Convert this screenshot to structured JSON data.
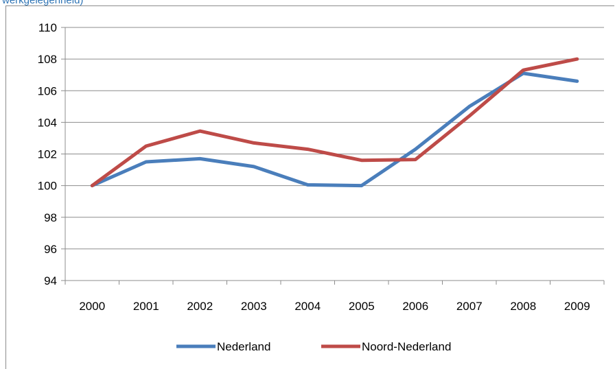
{
  "caption_fragment": "werkgelegenheid)",
  "chart_data": {
    "type": "line",
    "title": "",
    "xlabel": "",
    "ylabel": "",
    "categories": [
      "2000",
      "2001",
      "2002",
      "2003",
      "2004",
      "2005",
      "2006",
      "2007",
      "2008",
      "2009"
    ],
    "ylim": [
      94,
      110
    ],
    "yticks": [
      94,
      96,
      98,
      100,
      102,
      104,
      106,
      108,
      110
    ],
    "grid": "horizontal",
    "legend_position": "bottom",
    "series": [
      {
        "name": "Nederland",
        "color": "#4a7ebb",
        "values": [
          100,
          101.5,
          101.7,
          101.2,
          100.05,
          100.0,
          102.3,
          105.0,
          107.1,
          106.6
        ]
      },
      {
        "name": "Noord-Nederland",
        "color": "#be4b48",
        "values": [
          100,
          102.5,
          103.45,
          102.7,
          102.3,
          101.6,
          101.65,
          104.4,
          107.3,
          108.0
        ]
      }
    ]
  }
}
